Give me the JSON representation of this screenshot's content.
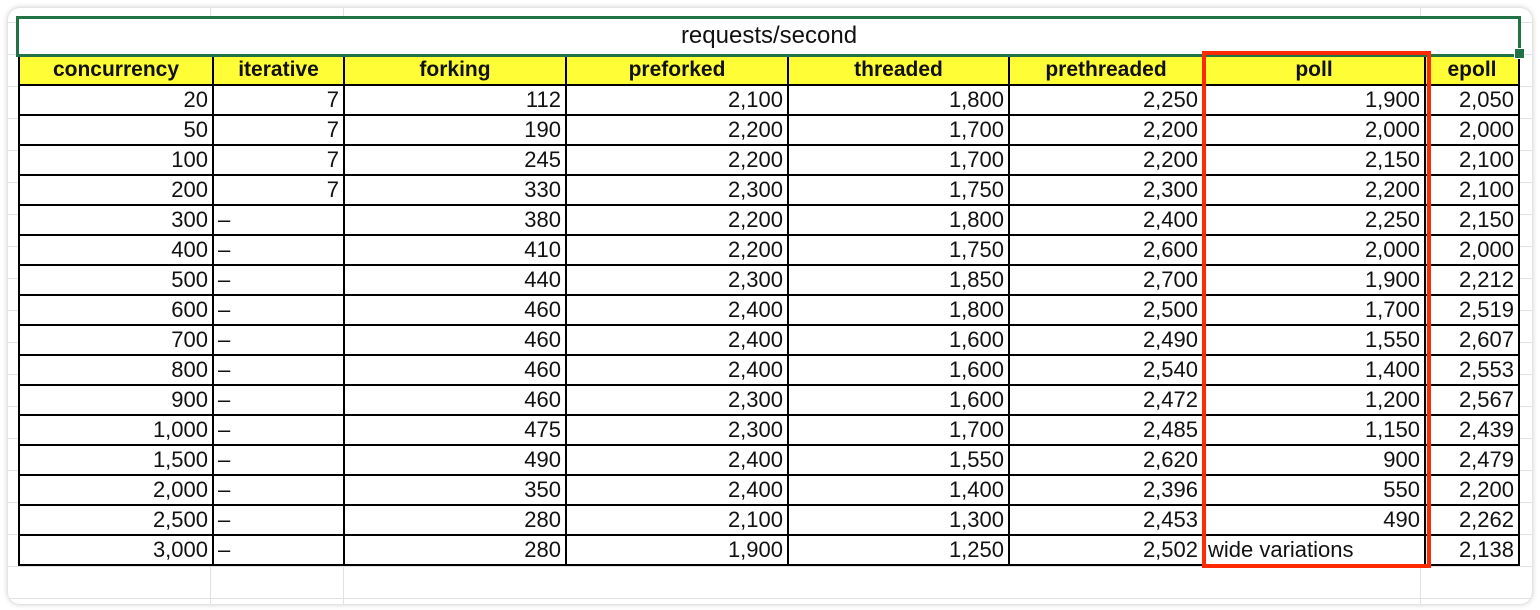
{
  "title": "requests/second",
  "columns": [
    "concurrency",
    "iterative",
    "forking",
    "preforked",
    "threaded",
    "prethreaded",
    "poll",
    "epoll"
  ],
  "rows": [
    [
      "20",
      "7",
      "112",
      "2,100",
      "1,800",
      "2,250",
      "1,900",
      "2,050"
    ],
    [
      "50",
      "7",
      "190",
      "2,200",
      "1,700",
      "2,200",
      "2,000",
      "2,000"
    ],
    [
      "100",
      "7",
      "245",
      "2,200",
      "1,700",
      "2,200",
      "2,150",
      "2,100"
    ],
    [
      "200",
      "7",
      "330",
      "2,300",
      "1,750",
      "2,300",
      "2,200",
      "2,100"
    ],
    [
      "300",
      "–",
      "380",
      "2,200",
      "1,800",
      "2,400",
      "2,250",
      "2,150"
    ],
    [
      "400",
      "–",
      "410",
      "2,200",
      "1,750",
      "2,600",
      "2,000",
      "2,000"
    ],
    [
      "500",
      "–",
      "440",
      "2,300",
      "1,850",
      "2,700",
      "1,900",
      "2,212"
    ],
    [
      "600",
      "–",
      "460",
      "2,400",
      "1,800",
      "2,500",
      "1,700",
      "2,519"
    ],
    [
      "700",
      "–",
      "460",
      "2,400",
      "1,600",
      "2,490",
      "1,550",
      "2,607"
    ],
    [
      "800",
      "–",
      "460",
      "2,400",
      "1,600",
      "2,540",
      "1,400",
      "2,553"
    ],
    [
      "900",
      "–",
      "460",
      "2,300",
      "1,600",
      "2,472",
      "1,200",
      "2,567"
    ],
    [
      "1,000",
      "–",
      "475",
      "2,300",
      "1,700",
      "2,485",
      "1,150",
      "2,439"
    ],
    [
      "1,500",
      "–",
      "490",
      "2,400",
      "1,550",
      "2,620",
      "900",
      "2,479"
    ],
    [
      "2,000",
      "–",
      "350",
      "2,400",
      "1,400",
      "2,396",
      "550",
      "2,200"
    ],
    [
      "2,500",
      "–",
      "280",
      "2,100",
      "1,300",
      "2,453",
      "490",
      "2,262"
    ],
    [
      "3,000",
      "–",
      "280",
      "1,900",
      "1,250",
      "2,502",
      "wide variations",
      "2,138"
    ]
  ],
  "colors": {
    "header_fill": "#fffe36",
    "selection": "#217346",
    "highlight": "#ff2a00"
  }
}
